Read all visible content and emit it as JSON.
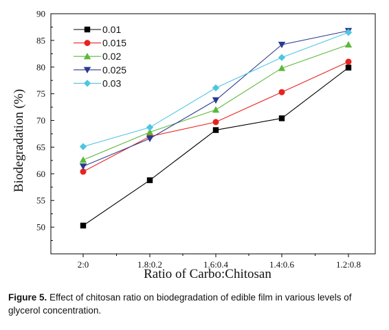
{
  "chart_data": {
    "type": "line",
    "xlabel": "Ratio of Carbo:Chitosan",
    "ylabel": "Biodegradation (%)",
    "categories": [
      "2:0",
      "1.8:0.2",
      "1.6:0.4",
      "1.4:0.6",
      "1.2:0.8"
    ],
    "ylim": [
      45,
      90
    ],
    "yticks": [
      50,
      55,
      60,
      65,
      70,
      75,
      80,
      85,
      90
    ],
    "grid": false,
    "legend_position": "top-left",
    "series": [
      {
        "name": "0.01",
        "color": "#000000",
        "marker": "square",
        "values": [
          50.3,
          58.8,
          68.2,
          70.4,
          79.9
        ]
      },
      {
        "name": "0.015",
        "color": "#e8231f",
        "marker": "circle",
        "values": [
          60.4,
          67.0,
          69.7,
          75.3,
          81.0
        ]
      },
      {
        "name": "0.02",
        "color": "#5cb83c",
        "marker": "triangle-up",
        "values": [
          62.6,
          67.8,
          72.0,
          79.8,
          84.2
        ]
      },
      {
        "name": "0.025",
        "color": "#2b3a8f",
        "marker": "triangle-down",
        "values": [
          61.4,
          66.6,
          73.8,
          84.2,
          86.8
        ]
      },
      {
        "name": "0.03",
        "color": "#4ec6e0",
        "marker": "diamond",
        "values": [
          65.1,
          68.7,
          76.1,
          81.8,
          86.5
        ]
      }
    ]
  },
  "caption": {
    "label": "Figure 5.",
    "text": " Effect of chitosan ratio on biodegradation of edible film in various levels of glycerol concentration."
  }
}
